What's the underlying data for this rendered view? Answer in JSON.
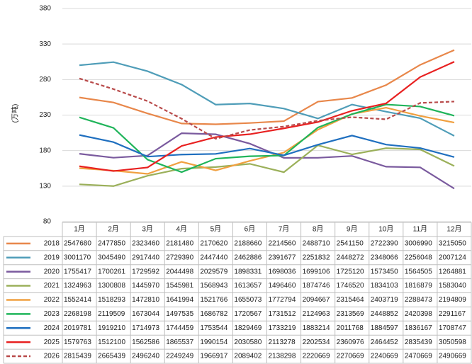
{
  "chart_data": {
    "type": "line",
    "y_label": "(万吨)",
    "categories": [
      "1月",
      "2月",
      "3月",
      "4月",
      "5月",
      "6月",
      "7月",
      "8月",
      "9月",
      "10月",
      "11月",
      "12月"
    ],
    "ylim": [
      80,
      380
    ],
    "yticks": [
      80,
      130,
      180,
      230,
      280,
      330,
      380
    ],
    "grid": true,
    "series": [
      {
        "name": "2018",
        "color": "#e8874a",
        "values": [
          254.768,
          247.785,
          232.346,
          218.148,
          217.062,
          218.866,
          221.456,
          248.871,
          254.115,
          272.239,
          300.699,
          321.505
        ],
        "value_labels": [
          "2547680",
          "2477850",
          "2323460",
          "2181480",
          "2170620",
          "2188660",
          "2214560",
          "2488710",
          "2541150",
          "2722390",
          "3006990",
          "3215050"
        ]
      },
      {
        "name": "2019",
        "color": "#4f9db8",
        "values": [
          300.117,
          304.549,
          291.744,
          272.939,
          244.744,
          246.2886,
          239.1677,
          225.1832,
          244.8272,
          234.8066,
          225.6048,
          200.7124
        ],
        "value_labels": [
          "3001170",
          "3045490",
          "2917440",
          "2729390",
          "2447440",
          "2462886",
          "2391677",
          "2251832",
          "2448272",
          "2348066",
          "2256048",
          "2007124"
        ]
      },
      {
        "name": "2020",
        "color": "#7a5a9e",
        "values": [
          175.5417,
          170.0261,
          172.9592,
          204.4498,
          202.9579,
          189.8331,
          169.8036,
          169.9106,
          172.512,
          157.345,
          156.4505,
          126.4881
        ],
        "value_labels": [
          "1755417",
          "1700261",
          "1729592",
          "2044498",
          "2029579",
          "1898331",
          "1698036",
          "1699106",
          "1725120",
          "1573450",
          "1564505",
          "1264881"
        ]
      },
      {
        "name": "2021",
        "color": "#9bb05a",
        "values": [
          132.4963,
          130.0808,
          144.597,
          154.5981,
          156.8943,
          161.3657,
          149.646,
          187.4746,
          174.652,
          183.4103,
          181.6879,
          158.304
        ],
        "value_labels": [
          "1324963",
          "1300808",
          "1445970",
          "1545981",
          "1568943",
          "1613657",
          "1496460",
          "1874746",
          "1746520",
          "1834103",
          "1816879",
          "1583040"
        ]
      },
      {
        "name": "2022",
        "color": "#f0a040",
        "values": [
          155.2414,
          151.8293,
          147.281,
          164.1994,
          152.1766,
          165.5073,
          177.2794,
          209.4667,
          231.5464,
          240.3719,
          228.8473,
          219.4809
        ],
        "value_labels": [
          "1552414",
          "1518293",
          "1472810",
          "1641994",
          "1521766",
          "1655073",
          "1772794",
          "2094667",
          "2315464",
          "2403719",
          "2288473",
          "2194809"
        ]
      },
      {
        "name": "2023",
        "color": "#1fb45a",
        "values": [
          226.8198,
          211.9509,
          167.3044,
          149.7535,
          168.6782,
          172.0567,
          173.1512,
          212.4963,
          231.3569,
          244.8852,
          242.0398,
          229.1167
        ],
        "value_labels": [
          "2268198",
          "2119509",
          "1673044",
          "1497535",
          "1686782",
          "1720567",
          "1731512",
          "2124963",
          "2313569",
          "2448852",
          "2420398",
          "2291167"
        ]
      },
      {
        "name": "2024",
        "color": "#1f6fbf",
        "values": [
          201.9781,
          191.921,
          171.4973,
          174.4459,
          175.3544,
          182.9469,
          173.3219,
          188.3214,
          201.1768,
          188.4597,
          183.6167,
          170.8747
        ],
        "value_labels": [
          "2019781",
          "1919210",
          "1714973",
          "1744459",
          "1753544",
          "1829469",
          "1733219",
          "1883214",
          "2011768",
          "1884597",
          "1836167",
          "1708747"
        ]
      },
      {
        "name": "2025",
        "color": "#e82020",
        "values": [
          157.9763,
          151.21,
          156.2586,
          186.5537,
          199.0154,
          203.058,
          211.3278,
          220.2534,
          236.0976,
          246.4452,
          283.5439,
          305.0598
        ],
        "value_labels": [
          "1579763",
          "1512100",
          "1562586",
          "1865537",
          "1990154",
          "2030580",
          "2113278",
          "2202534",
          "2360976",
          "2464452",
          "2835439",
          "3050598"
        ]
      },
      {
        "name": "2026",
        "color": "#b84a4a",
        "dashed": true,
        "values": [
          281.5439,
          266.5439,
          249.624,
          224.9249,
          196.6917,
          208.9402,
          213.8298,
          222.0669,
          227.0669,
          224.0669,
          247.0669,
          249.0669
        ],
        "value_labels": [
          "2815439",
          "2665439",
          "2496240",
          "2249249",
          "1966917",
          "2089402",
          "2138298",
          "2220669",
          "2270669",
          "2240669",
          "2470669",
          "2490669"
        ]
      }
    ]
  }
}
